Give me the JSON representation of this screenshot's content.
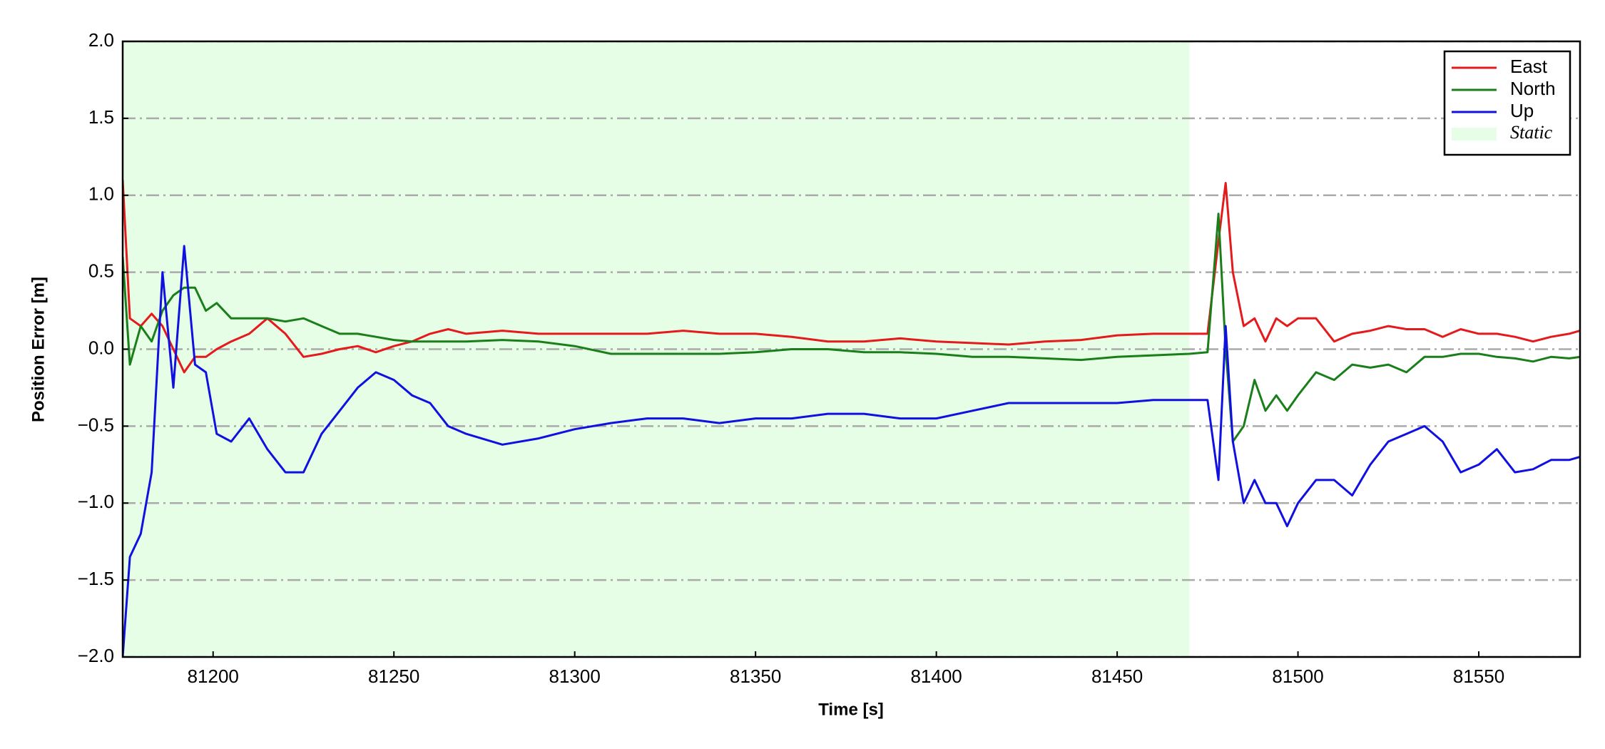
{
  "chart_data": {
    "type": "line",
    "xlabel": "Time [s]",
    "ylabel": "Position Error [m]",
    "x": [
      81175,
      81177,
      81180,
      81183,
      81186,
      81189,
      81192,
      81195,
      81198,
      81201,
      81205,
      81210,
      81215,
      81220,
      81225,
      81230,
      81235,
      81240,
      81245,
      81250,
      81255,
      81260,
      81265,
      81270,
      81280,
      81290,
      81300,
      81310,
      81320,
      81330,
      81340,
      81350,
      81360,
      81370,
      81380,
      81390,
      81400,
      81410,
      81420,
      81430,
      81440,
      81450,
      81460,
      81470,
      81475,
      81478,
      81480,
      81482,
      81485,
      81488,
      81491,
      81494,
      81497,
      81500,
      81505,
      81510,
      81515,
      81520,
      81525,
      81530,
      81535,
      81540,
      81545,
      81550,
      81555,
      81560,
      81565,
      81570,
      81575,
      81578
    ],
    "series": [
      {
        "name": "East",
        "color": "#e41a1c",
        "values": [
          1.1,
          0.2,
          0.15,
          0.23,
          0.15,
          0.0,
          -0.15,
          -0.05,
          -0.05,
          0.0,
          0.05,
          0.1,
          0.2,
          0.1,
          -0.05,
          -0.03,
          0.0,
          0.02,
          -0.02,
          0.02,
          0.05,
          0.1,
          0.13,
          0.1,
          0.12,
          0.1,
          0.1,
          0.1,
          0.1,
          0.12,
          0.1,
          0.1,
          0.08,
          0.05,
          0.05,
          0.07,
          0.05,
          0.04,
          0.03,
          0.05,
          0.06,
          0.09,
          0.1,
          0.1,
          0.1,
          0.7,
          1.08,
          0.5,
          0.15,
          0.2,
          0.05,
          0.2,
          0.15,
          0.2,
          0.2,
          0.05,
          0.1,
          0.12,
          0.15,
          0.13,
          0.13,
          0.08,
          0.13,
          0.1,
          0.1,
          0.08,
          0.05,
          0.08,
          0.1,
          0.12
        ]
      },
      {
        "name": "North",
        "color": "#1a7f1a",
        "values": [
          0.6,
          -0.1,
          0.15,
          0.05,
          0.25,
          0.35,
          0.4,
          0.4,
          0.25,
          0.3,
          0.2,
          0.2,
          0.2,
          0.18,
          0.2,
          0.15,
          0.1,
          0.1,
          0.08,
          0.06,
          0.05,
          0.05,
          0.05,
          0.05,
          0.06,
          0.05,
          0.02,
          -0.03,
          -0.03,
          -0.03,
          -0.03,
          -0.02,
          0.0,
          0.0,
          -0.02,
          -0.02,
          -0.03,
          -0.05,
          -0.05,
          -0.06,
          -0.07,
          -0.05,
          -0.04,
          -0.03,
          -0.02,
          0.88,
          0.0,
          -0.6,
          -0.5,
          -0.2,
          -0.4,
          -0.3,
          -0.4,
          -0.3,
          -0.15,
          -0.2,
          -0.1,
          -0.12,
          -0.1,
          -0.15,
          -0.05,
          -0.05,
          -0.03,
          -0.03,
          -0.05,
          -0.06,
          -0.08,
          -0.05,
          -0.06,
          -0.05
        ]
      },
      {
        "name": "Up",
        "color": "#1010e0",
        "values": [
          -2.0,
          -1.35,
          -1.2,
          -0.8,
          0.5,
          -0.25,
          0.67,
          -0.1,
          -0.15,
          -0.55,
          -0.6,
          -0.45,
          -0.65,
          -0.8,
          -0.8,
          -0.55,
          -0.4,
          -0.25,
          -0.15,
          -0.2,
          -0.3,
          -0.35,
          -0.5,
          -0.55,
          -0.62,
          -0.58,
          -0.52,
          -0.48,
          -0.45,
          -0.45,
          -0.48,
          -0.45,
          -0.45,
          -0.42,
          -0.42,
          -0.45,
          -0.45,
          -0.4,
          -0.35,
          -0.35,
          -0.35,
          -0.35,
          -0.33,
          -0.33,
          -0.33,
          -0.85,
          0.15,
          -0.6,
          -1.0,
          -0.85,
          -1.0,
          -1.0,
          -1.15,
          -1.0,
          -0.85,
          -0.85,
          -0.95,
          -0.75,
          -0.6,
          -0.55,
          -0.5,
          -0.6,
          -0.8,
          -0.75,
          -0.65,
          -0.8,
          -0.78,
          -0.72,
          -0.72,
          -0.7
        ]
      }
    ],
    "static_region": {
      "name": "Static",
      "color": "#e6fde6",
      "x": [
        81175,
        81470
      ]
    },
    "xlim": [
      81175,
      81578
    ],
    "xticks": [
      81200,
      81250,
      81300,
      81350,
      81400,
      81450,
      81500,
      81550
    ],
    "ylim": [
      -2.0,
      2.0
    ],
    "yticks": [
      {
        "value": -2.0,
        "label": "−2.0"
      },
      {
        "value": -1.5,
        "label": "−1.5"
      },
      {
        "value": -1.0,
        "label": "−1.0"
      },
      {
        "value": -0.5,
        "label": "−0.5"
      },
      {
        "value": 0.0,
        "label": "0.0"
      },
      {
        "value": 0.5,
        "label": "0.5"
      },
      {
        "value": 1.0,
        "label": "1.0"
      },
      {
        "value": 1.5,
        "label": "1.5"
      },
      {
        "value": 2.0,
        "label": "2.0"
      }
    ],
    "grid": true,
    "legend": "upper right"
  }
}
